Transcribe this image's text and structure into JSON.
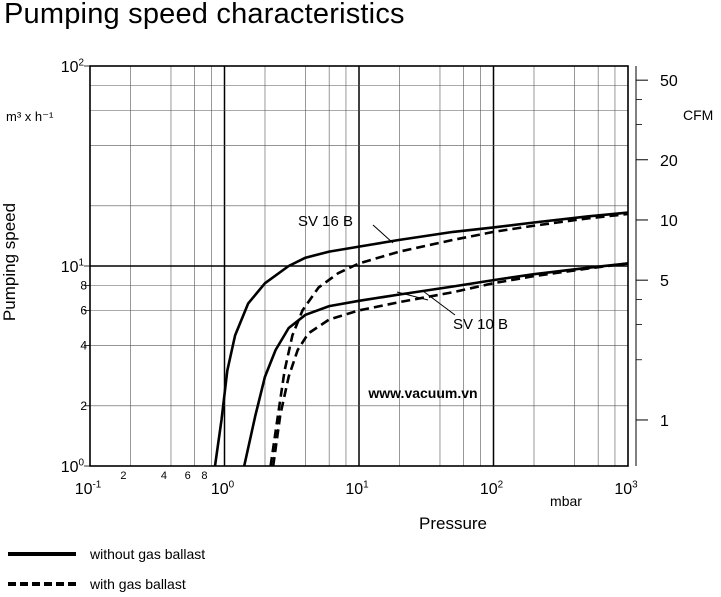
{
  "title": "Pumping speed characteristics",
  "chart_data": {
    "type": "line",
    "title": "Pumping speed characteristics",
    "xlabel": "Pressure",
    "x_unit": "mbar",
    "ylabel": "Pumping speed",
    "y_unit": "m³ x h⁻¹",
    "y2_unit": "CFM",
    "xscale": "log",
    "yscale": "log",
    "xlim": [
      0.1,
      1000
    ],
    "ylim": [
      1,
      100
    ],
    "x_ticks": [
      {
        "value": 0.1,
        "base": "10",
        "exp": "-1"
      },
      {
        "value": 1,
        "base": "10",
        "exp": "0"
      },
      {
        "value": 10,
        "base": "10",
        "exp": "1"
      },
      {
        "value": 100,
        "base": "10",
        "exp": "2"
      },
      {
        "value": 1000,
        "base": "10",
        "exp": "3"
      }
    ],
    "x_minor_labels": [
      {
        "value": 0.2,
        "label": "2"
      },
      {
        "value": 0.4,
        "label": "4"
      },
      {
        "value": 0.6,
        "label": "6"
      },
      {
        "value": 0.8,
        "label": "8"
      }
    ],
    "y_ticks": [
      {
        "value": 1,
        "base": "10",
        "exp": "0"
      },
      {
        "value": 10,
        "base": "10",
        "exp": "1"
      },
      {
        "value": 100,
        "base": "10",
        "exp": "2"
      }
    ],
    "y_minor_labels": [
      {
        "value": 2,
        "label": "2"
      },
      {
        "value": 4,
        "label": "4"
      },
      {
        "value": 6,
        "label": "6"
      },
      {
        "value": 8,
        "label": "8"
      }
    ],
    "y2_ticks": [
      {
        "value": 1,
        "label": "1"
      },
      {
        "value": 5,
        "label": "5"
      },
      {
        "value": 10,
        "label": "10"
      },
      {
        "value": 20,
        "label": "20"
      },
      {
        "value": 50,
        "label": "50"
      }
    ],
    "cfm_per_m3h": 0.5886,
    "series": [
      {
        "name": "SV 16 B",
        "style": "solid",
        "x": [
          0.85,
          0.95,
          1.05,
          1.2,
          1.5,
          2,
          3,
          4,
          6,
          10,
          20,
          50,
          100,
          200,
          500,
          1000
        ],
        "y": [
          1,
          1.7,
          3,
          4.5,
          6.5,
          8.2,
          10,
          11,
          11.8,
          12.5,
          13.5,
          14.8,
          15.6,
          16.5,
          17.7,
          18.5
        ]
      },
      {
        "name": "SV 16 B",
        "style": "dashed",
        "x": [
          2.2,
          2.5,
          2.8,
          3.2,
          3.8,
          5,
          7,
          10,
          20,
          50,
          100,
          200,
          500,
          1000
        ],
        "y": [
          1,
          1.8,
          3,
          4.5,
          6,
          7.8,
          9.2,
          10.3,
          11.8,
          13.5,
          14.8,
          15.9,
          17.3,
          18.2
        ]
      },
      {
        "name": "SV 10 B",
        "style": "solid",
        "x": [
          1.4,
          1.7,
          2,
          2.4,
          3,
          4,
          6,
          10,
          20,
          50,
          100,
          200,
          500,
          1000
        ],
        "y": [
          1,
          1.8,
          2.8,
          3.8,
          4.9,
          5.7,
          6.3,
          6.7,
          7.2,
          7.9,
          8.5,
          9.1,
          9.8,
          10.3
        ]
      },
      {
        "name": "SV 10 B",
        "style": "dashed",
        "x": [
          2.3,
          2.6,
          3,
          3.5,
          4.2,
          6,
          10,
          20,
          50,
          100,
          200,
          500,
          1000
        ],
        "y": [
          1,
          1.8,
          2.8,
          3.8,
          4.6,
          5.4,
          6,
          6.6,
          7.4,
          8.2,
          8.9,
          9.7,
          10.3
        ]
      }
    ],
    "annotations": [
      "SV 16 B",
      "SV 10 B"
    ],
    "watermark": "www.vacuum.vn"
  },
  "legend": {
    "solid": "without gas ballast",
    "dashed": "with gas ballast"
  }
}
